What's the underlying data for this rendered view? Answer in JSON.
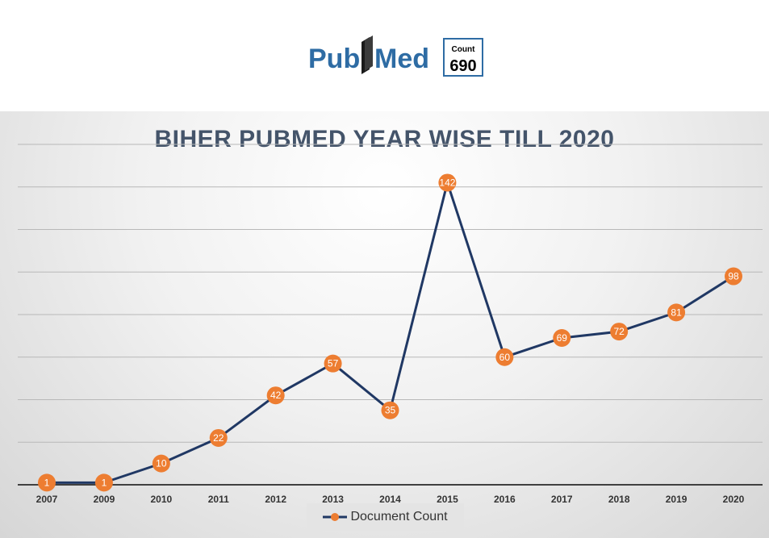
{
  "logo": {
    "pub_text": "Pub",
    "med_text": "Med",
    "count_label": "Count",
    "count_value": "690",
    "colors": {
      "pub": "#2e6ca4",
      "med": "#2e6ca4",
      "book": "#1a1a1a",
      "box_border": "#2e6ca4"
    }
  },
  "chart_data": {
    "type": "line",
    "title": "BIHER PUBMED YEAR WISE TILL 2020",
    "categories": [
      "2007",
      "2009",
      "2010",
      "2011",
      "2012",
      "2013",
      "2014",
      "2015",
      "2016",
      "2017",
      "2018",
      "2019",
      "2020"
    ],
    "series": [
      {
        "name": "Document Count",
        "values": [
          1,
          1,
          10,
          22,
          42,
          57,
          35,
          142,
          60,
          69,
          72,
          81,
          98
        ],
        "line_color": "#203864",
        "marker_color": "#ed7d31"
      }
    ],
    "ylim": [
      0,
      160
    ],
    "grid": true,
    "legend_position": "bottom"
  }
}
